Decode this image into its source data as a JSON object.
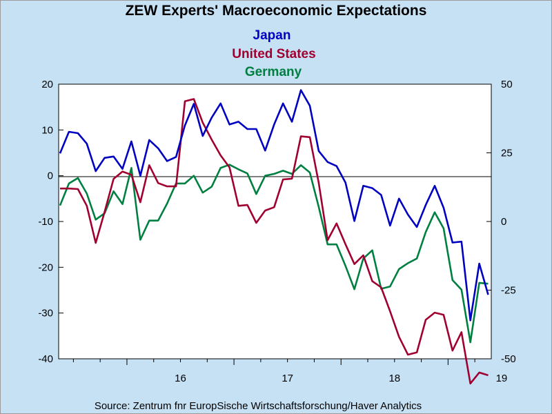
{
  "chart_data": {
    "type": "line",
    "title": "ZEW Experts' Macroeconomic Expectations",
    "source": "Source:  Zentrum fnr EuropSische Wirtschaftsforschung/Haver Analytics",
    "left_axis": {
      "ylim": [
        -40,
        20
      ],
      "ticks": [
        "20",
        "10",
        "0",
        "-10",
        "-20",
        "-30",
        "-40"
      ]
    },
    "right_axis": {
      "ylim": [
        -50,
        50
      ],
      "ticks": [
        "50",
        "25",
        "0",
        "-25",
        "-50"
      ]
    },
    "x_labels": [
      "16",
      "17",
      "18",
      "19"
    ],
    "grid": "zero line only",
    "x_start": "2015-05",
    "x_end": "2019-04",
    "series": [
      {
        "name": "Japan",
        "color": "#0000c0",
        "axis": "left",
        "values": [
          4.9,
          9.6,
          9.3,
          7.0,
          1.0,
          3.9,
          4.2,
          1.5,
          7.5,
          0.0,
          7.8,
          6.0,
          3.2,
          4.1,
          11.0,
          15.7,
          8.7,
          12.7,
          15.8,
          11.2,
          11.8,
          10.2,
          10.2,
          5.5,
          11.2,
          15.8,
          11.8,
          18.7,
          15.3,
          5.4,
          3.0,
          2.1,
          -1.5,
          -9.9,
          -2.2,
          -2.7,
          -4.2,
          -10.9,
          -5.0,
          -8.5,
          -11.2,
          -6.4,
          -2.2,
          -7.0,
          -14.6,
          -14.4,
          -31.6,
          -19.2,
          -26.0
        ]
      },
      {
        "name": "United States",
        "color": "#a00030",
        "axis": "right",
        "values": [
          12.0,
          12.0,
          11.8,
          5.7,
          -7.8,
          3.5,
          15.5,
          18.2,
          17.0,
          7.0,
          20.5,
          14.0,
          12.8,
          12.8,
          43.8,
          44.6,
          36.0,
          29.8,
          24.1,
          19.7,
          5.7,
          6.0,
          -0.5,
          4.0,
          5.2,
          15.3,
          15.6,
          31.0,
          30.7,
          14.1,
          -6.8,
          -0.7,
          -8.3,
          -15.5,
          -12.3,
          -21.7,
          -24.0,
          -32.7,
          -42.0,
          -48.5,
          -47.7,
          -35.8,
          -33.2,
          -34.0,
          -47.0,
          -40.3,
          -59.0,
          -55.0,
          -56.0
        ]
      },
      {
        "name": "Germany",
        "color": "#008040",
        "axis": "left",
        "values": [
          -6.5,
          -1.7,
          -0.5,
          -3.9,
          -9.6,
          -8.2,
          -3.4,
          -6.2,
          1.7,
          -14.0,
          -9.8,
          -9.8,
          -6.1,
          -1.7,
          -1.7,
          0.0,
          -3.7,
          -2.4,
          1.7,
          2.4,
          1.4,
          0.5,
          -4.0,
          0.0,
          0.4,
          1.1,
          0.4,
          2.3,
          0.7,
          -6.8,
          -15.0,
          -15.0,
          -19.7,
          -24.8,
          -18.1,
          -16.3,
          -24.7,
          -24.2,
          -20.4,
          -19.1,
          -18.1,
          -12.3,
          -8.0,
          -11.5,
          -22.8,
          -24.9,
          -36.4,
          -23.4,
          -23.6
        ]
      }
    ]
  }
}
